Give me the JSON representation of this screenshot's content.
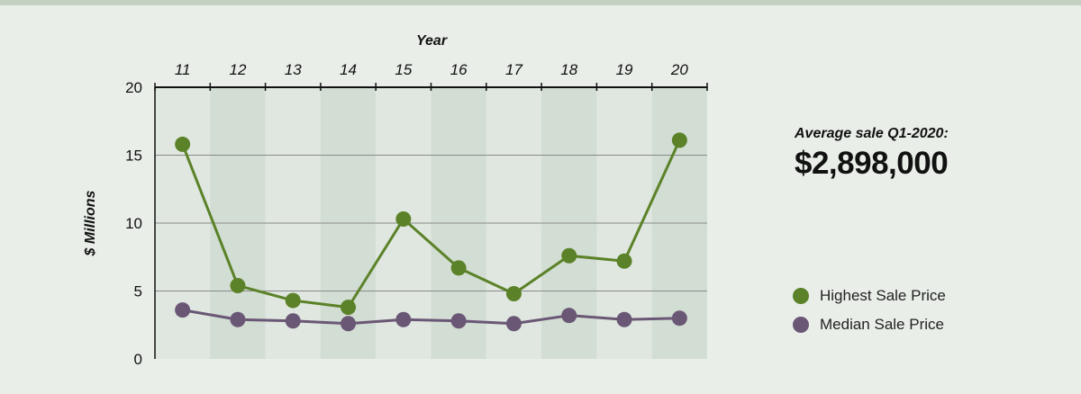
{
  "stat": {
    "label": "Average sale Q1-2020:",
    "value": "$2,898,000"
  },
  "colors": {
    "background": "#e9eee9",
    "band_light": "#dfe7e0",
    "band_dark": "#d2ddd3",
    "highest": "#5b8228",
    "median": "#6a5775",
    "gridline": "#8a8a8a",
    "axis": "#111111"
  },
  "chart_data": {
    "type": "line",
    "title": "",
    "xlabel": "Year",
    "ylabel": "$ Millions",
    "x_axis_position": "top",
    "categories": [
      "11",
      "12",
      "13",
      "14",
      "15",
      "16",
      "17",
      "18",
      "19",
      "20"
    ],
    "yticks": [
      0,
      5,
      10,
      15,
      20
    ],
    "ylim": [
      0,
      20
    ],
    "grid": true,
    "legend_position": "right",
    "series": [
      {
        "name": "Highest Sale Price",
        "color": "#5b8228",
        "values": [
          15.8,
          5.4,
          4.3,
          3.8,
          10.3,
          6.7,
          4.8,
          7.6,
          7.2,
          16.1
        ]
      },
      {
        "name": "Median Sale Price",
        "color": "#6a5775",
        "values": [
          3.6,
          2.9,
          2.8,
          2.6,
          2.9,
          2.8,
          2.6,
          3.2,
          2.9,
          3.0
        ]
      }
    ]
  }
}
